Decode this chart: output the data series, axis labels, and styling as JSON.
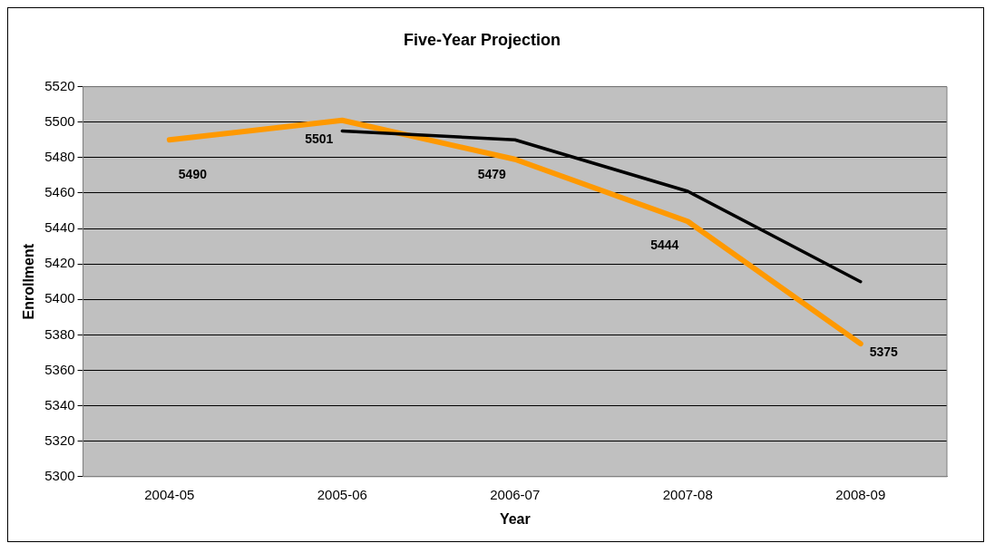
{
  "chart_data": {
    "type": "line",
    "title": "Five-Year Projection",
    "xlabel": "Year",
    "ylabel": "Enrollment",
    "categories": [
      "2004-05",
      "2005-06",
      "2006-07",
      "2007-08",
      "2008-09"
    ],
    "series": [
      {
        "color": "#000000",
        "values": [
          null,
          5495,
          5490,
          5461,
          5410
        ]
      },
      {
        "color": "#ff9900",
        "values": [
          5490,
          5501,
          5479,
          5444,
          5375
        ],
        "value_labels": [
          "5490",
          "5501",
          "5479",
          "5444",
          "5375"
        ]
      }
    ],
    "ylim": [
      5300,
      5520
    ],
    "yticks": [
      5300,
      5320,
      5340,
      5360,
      5380,
      5400,
      5420,
      5440,
      5460,
      5480,
      5500,
      5520
    ],
    "grid": "y",
    "legend": false,
    "marker": "none",
    "line_style": "solid"
  }
}
